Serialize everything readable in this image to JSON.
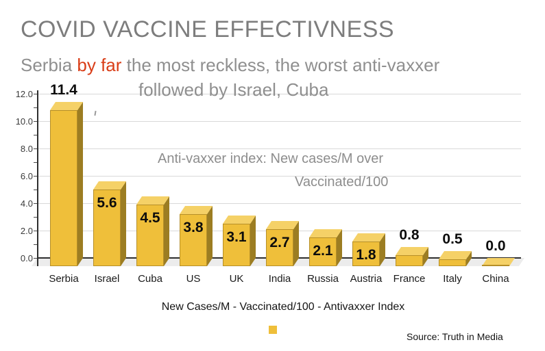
{
  "header": {
    "title": "COVID VACCINE EFFECTIVNESS"
  },
  "subtitle": {
    "prefix": "Serbia ",
    "highlight": "by far",
    "suffix": " the most reckless, the worst anti-vaxxer",
    "line2": "followed by Israel, Cuba",
    "text_color": "#8f8f8f",
    "highlight_color": "#d93d17"
  },
  "annotation": {
    "line1": "Anti-vaxxer index: New cases/M over",
    "line2": "Vaccinated/100"
  },
  "legend": {
    "label": "New Cases/M - Vaccinated/100 - Antivaxxer Index",
    "swatch_color": "#efbf3a"
  },
  "source": {
    "label": "Source: Truth in Media"
  },
  "chart_data": {
    "type": "bar",
    "style": "3d",
    "title": "COVID VACCINE EFFECTIVNESS",
    "categories": [
      "Serbia",
      "Israel",
      "Cuba",
      "US",
      "UK",
      "India",
      "Russia",
      "Austria",
      "France",
      "Italy",
      "China"
    ],
    "values": [
      11.4,
      5.6,
      4.5,
      3.8,
      3.1,
      2.7,
      2.1,
      1.8,
      0.8,
      0.5,
      0.0
    ],
    "value_labels": [
      "11.4",
      "5.6",
      "4.5",
      "3.8",
      "3.1",
      "2.7",
      "2.1",
      "1.8",
      "0.8",
      "0.5",
      "0.0"
    ],
    "xlabel": "New Cases/M - Vaccinated/100 - Antivaxxer Index",
    "ylabel": "",
    "ylim": [
      0,
      12
    ],
    "ytick_values": [
      0,
      2,
      4,
      6,
      8,
      10,
      12
    ],
    "ytick_labels": [
      "0.0",
      "2.0",
      "4.0",
      "6.0",
      "8.0",
      "10.0",
      "12.0"
    ],
    "grid": true,
    "legend_position": "bottom",
    "bar_color": "#efbf3a",
    "bar_top_color": "#f5d167",
    "bar_side_color": "#9c7d22",
    "outside_label_indices": [
      0,
      8,
      9,
      10
    ]
  }
}
